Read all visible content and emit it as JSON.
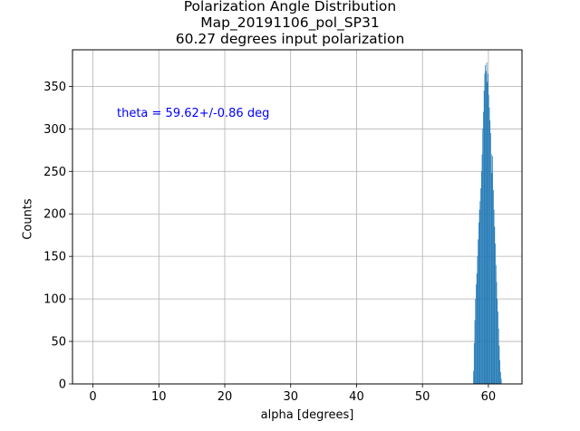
{
  "chart_data": {
    "type": "bar",
    "title": [
      "Polarization Angle Distribution",
      "Map_20191106_pol_SP31",
      "60.27 degrees input polarization"
    ],
    "xlabel": "alpha [degrees]",
    "ylabel": "Counts",
    "xlim": [
      -3.1,
      65.1
    ],
    "ylim": [
      0,
      393
    ],
    "xticks": [
      0,
      10,
      20,
      30,
      40,
      50,
      60
    ],
    "yticks": [
      0,
      50,
      100,
      150,
      200,
      250,
      300,
      350
    ],
    "grid": true,
    "bar_color": "#1f77b4",
    "bin_width": 0.1,
    "annotation": "theta = 59.62+/-0.86 deg",
    "annotation_color": "#0000ff",
    "bins": [
      {
        "x": 57.7,
        "y": 15
      },
      {
        "x": 57.8,
        "y": 48
      },
      {
        "x": 57.9,
        "y": 75
      },
      {
        "x": 58.0,
        "y": 100
      },
      {
        "x": 58.1,
        "y": 117
      },
      {
        "x": 58.2,
        "y": 130
      },
      {
        "x": 58.3,
        "y": 150
      },
      {
        "x": 58.4,
        "y": 170
      },
      {
        "x": 58.5,
        "y": 190
      },
      {
        "x": 58.6,
        "y": 205
      },
      {
        "x": 58.7,
        "y": 215
      },
      {
        "x": 58.8,
        "y": 230
      },
      {
        "x": 58.9,
        "y": 250
      },
      {
        "x": 59.0,
        "y": 270
      },
      {
        "x": 59.1,
        "y": 300
      },
      {
        "x": 59.2,
        "y": 320
      },
      {
        "x": 59.3,
        "y": 345
      },
      {
        "x": 59.4,
        "y": 365
      },
      {
        "x": 59.5,
        "y": 375
      },
      {
        "x": 59.6,
        "y": 368
      },
      {
        "x": 59.7,
        "y": 378
      },
      {
        "x": 59.8,
        "y": 355
      },
      {
        "x": 59.9,
        "y": 365
      },
      {
        "x": 60.0,
        "y": 340
      },
      {
        "x": 60.1,
        "y": 325
      },
      {
        "x": 60.2,
        "y": 310
      },
      {
        "x": 60.3,
        "y": 295
      },
      {
        "x": 60.4,
        "y": 270
      },
      {
        "x": 60.5,
        "y": 248
      },
      {
        "x": 60.6,
        "y": 268
      },
      {
        "x": 60.7,
        "y": 228
      },
      {
        "x": 60.8,
        "y": 205
      },
      {
        "x": 60.9,
        "y": 185
      },
      {
        "x": 61.0,
        "y": 165
      },
      {
        "x": 61.1,
        "y": 140
      },
      {
        "x": 61.2,
        "y": 120
      },
      {
        "x": 61.3,
        "y": 100
      },
      {
        "x": 61.4,
        "y": 85
      },
      {
        "x": 61.5,
        "y": 65
      },
      {
        "x": 61.6,
        "y": 45
      },
      {
        "x": 61.7,
        "y": 28
      },
      {
        "x": 61.8,
        "y": 14
      },
      {
        "x": 61.9,
        "y": 6
      }
    ]
  }
}
